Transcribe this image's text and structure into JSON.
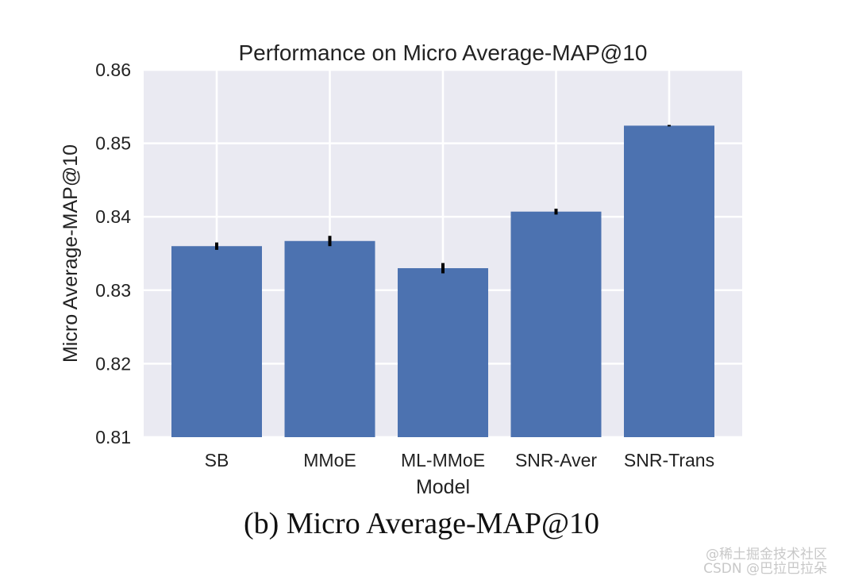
{
  "chart_data": {
    "type": "bar",
    "title": "Performance on Micro Average-MAP@10",
    "xlabel": "Model",
    "ylabel": "Micro Average-MAP@10",
    "categories": [
      "SB",
      "MMoE",
      "ML-MMoE",
      "SNR-Aver",
      "SNR-Trans"
    ],
    "values": [
      0.836,
      0.8367,
      0.833,
      0.8407,
      0.8524
    ],
    "errors": [
      0.0005,
      0.0007,
      0.0007,
      0.0004,
      0.0001
    ],
    "ylim": [
      0.81,
      0.86
    ],
    "yticks": [
      "0.81",
      "0.82",
      "0.83",
      "0.84",
      "0.85",
      "0.86"
    ],
    "grid": true,
    "bar_color": "#4c72b0",
    "background_color": "#eaeaf2"
  },
  "caption": "(b) Micro Average-MAP@10",
  "watermarks": [
    "@稀土掘金技术社区",
    "CSDN @巴拉巴拉朵"
  ]
}
